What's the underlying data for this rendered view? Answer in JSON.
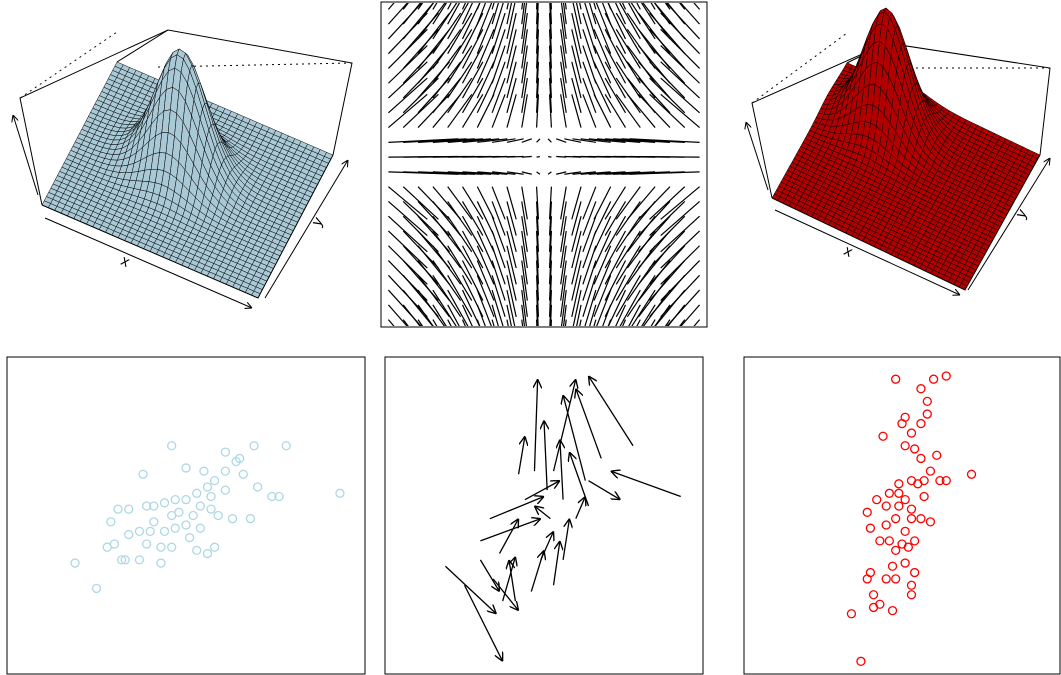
{
  "chart_data": [
    {
      "type": "surface",
      "xlabel": "x",
      "ylabel": "y",
      "color": "#a9c9d6"
    },
    {
      "type": "vectorfield"
    },
    {
      "type": "surface",
      "xlabel": "x",
      "ylabel": "y",
      "color": "#b00000"
    },
    {
      "type": "scatter",
      "color": "#add8e6",
      "xlim": [
        0,
        100
      ],
      "ylim": [
        0,
        100
      ],
      "x": [
        19,
        25,
        38,
        46,
        50,
        61,
        65,
        69,
        78,
        93,
        74,
        76,
        70,
        68,
        63,
        58,
        56,
        53,
        46,
        37,
        33,
        32,
        28,
        30,
        29,
        31,
        34,
        39,
        41,
        44,
        47,
        50,
        53,
        56,
        58,
        61,
        64,
        66,
        61,
        57,
        54,
        52,
        50,
        47,
        44,
        41,
        40,
        37,
        43,
        51,
        54,
        57,
        59,
        48,
        46,
        34,
        43,
        39,
        55
      ],
      "y": [
        35,
        27,
        63,
        72,
        65,
        70,
        68,
        72,
        72,
        57,
        56,
        56,
        59,
        49,
        49,
        40,
        38,
        39,
        40,
        36,
        36,
        36,
        40,
        41,
        48,
        52,
        52,
        53,
        53,
        54,
        55,
        55,
        57,
        59,
        61,
        64,
        67,
        63,
        58,
        56,
        53,
        50,
        47,
        46,
        45,
        48,
        45,
        45,
        40,
        43,
        46,
        52,
        50,
        51,
        50,
        44,
        35,
        41,
        64
      ]
    },
    {
      "type": "arrows",
      "color": "#000000",
      "xlim": [
        0,
        100
      ],
      "ylim": [
        0,
        100
      ],
      "x": [
        19,
        25,
        93,
        78,
        42,
        47,
        53,
        63,
        68,
        51,
        56,
        64,
        44,
        33,
        30,
        36,
        49,
        56,
        41,
        46,
        34,
        37,
        53,
        30,
        64,
        60,
        52
      ],
      "y": [
        34,
        28,
        56,
        72,
        63,
        64,
        64,
        61,
        68,
        58,
        55,
        53,
        55,
        49,
        42,
        38,
        36,
        36,
        23,
        26,
        30,
        23,
        28,
        36,
        61,
        49,
        49
      ],
      "xend": [
        35,
        37,
        71,
        64,
        44,
        48,
        60,
        56,
        60,
        50,
        55,
        58,
        55,
        50,
        49,
        42,
        53,
        58,
        39,
        50,
        42,
        41,
        55,
        36,
        74,
        63,
        47
      ],
      "yend": [
        19,
        4,
        64,
        94,
        75,
        93,
        93,
        88,
        90,
        80,
        74,
        70,
        61,
        56,
        49,
        49,
        45,
        49,
        36,
        39,
        20,
        37,
        42,
        26,
        55,
        56,
        53
      ]
    },
    {
      "type": "scatter",
      "color": "#ff0000",
      "xlim": [
        0,
        100
      ],
      "ylim": [
        0,
        100
      ],
      "x": [
        37,
        34,
        41,
        43,
        47,
        41,
        39,
        40,
        45,
        48,
        53,
        53,
        54,
        51,
        48,
        46,
        43,
        40,
        39,
        42,
        46,
        49,
        53,
        55,
        57,
        59,
        62,
        64,
        72,
        61,
        56,
        54,
        51,
        53,
        56,
        58,
        58,
        56,
        60,
        64,
        48,
        44,
        50,
        49,
        48,
        51,
        54,
        56,
        59,
        53,
        49,
        51,
        57,
        45,
        50,
        47,
        52,
        45,
        53,
        51
      ],
      "y": [
        4,
        19,
        21,
        22,
        20,
        25,
        30,
        32,
        30,
        30,
        25,
        28,
        32,
        35,
        39,
        42,
        42,
        46,
        51,
        55,
        57,
        60,
        61,
        60,
        61,
        64,
        61,
        61,
        63,
        69,
        68,
        71,
        72,
        76,
        79,
        82,
        86,
        90,
        93,
        94,
        93,
        75,
        79,
        57,
        49,
        45,
        42,
        49,
        48,
        52,
        53,
        55,
        56,
        47,
        41,
        34,
        40,
        53,
        49,
        81
      ]
    }
  ]
}
